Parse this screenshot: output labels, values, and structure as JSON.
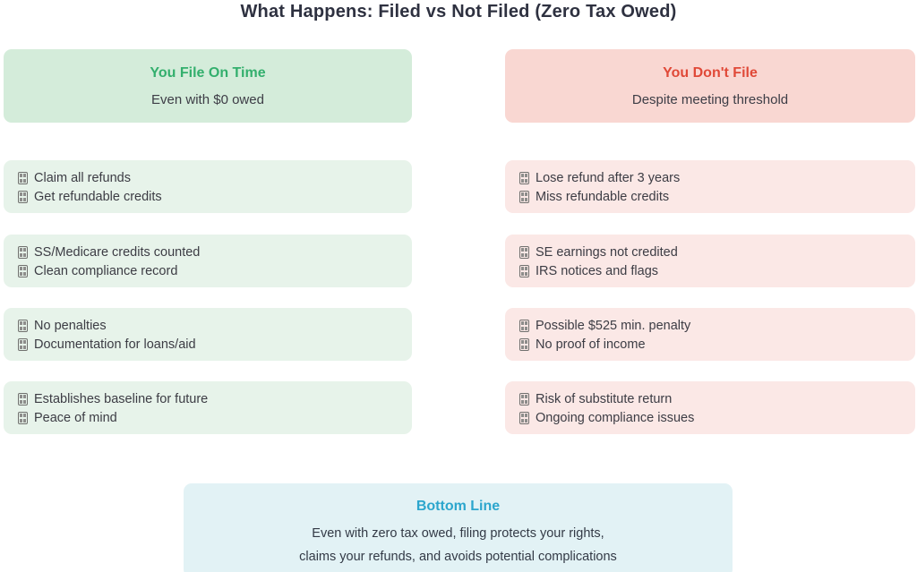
{
  "title": "What Happens: Filed vs Not Filed (Zero Tax Owed)",
  "left": {
    "header": {
      "title": "You File On Time",
      "subtitle": "Even with $0 owed"
    },
    "rows": [
      {
        "line1": "Claim all refunds",
        "line2": "Get refundable credits"
      },
      {
        "line1": "SS/Medicare credits counted",
        "line2": "Clean compliance record"
      },
      {
        "line1": "No penalties",
        "line2": "Documentation for loans/aid"
      },
      {
        "line1": "Establishes baseline for future",
        "line2": "Peace of mind"
      }
    ]
  },
  "right": {
    "header": {
      "title": "You Don't File",
      "subtitle": "Despite meeting threshold"
    },
    "rows": [
      {
        "line1": "Lose refund after 3 years",
        "line2": "Miss refundable credits"
      },
      {
        "line1": "SE earnings not credited",
        "line2": "IRS notices and flags"
      },
      {
        "line1": "Possible $525 min. penalty",
        "line2": "No proof of income"
      },
      {
        "line1": "Risk of substitute return",
        "line2": "Ongoing compliance issues"
      }
    ]
  },
  "bottom": {
    "title": "Bottom Line",
    "line1": "Even with zero tax owed, filing protects your rights,",
    "line2": "claims your refunds, and avoids potential complications"
  },
  "icons": {
    "bullet": "missing-emoji-glyph-box"
  },
  "colors": {
    "green_accent": "#33af6d",
    "red_accent": "#e04938",
    "teal_accent": "#2ca6cd",
    "green_header_bg": "#d4ecda",
    "green_row_bg": "#e7f3ea",
    "red_header_bg": "#f9d7d2",
    "red_row_bg": "#fbe8e6",
    "cyan_bg": "#e2f2f5",
    "title_color": "#2e3140",
    "body_text": "#3c3c44"
  }
}
